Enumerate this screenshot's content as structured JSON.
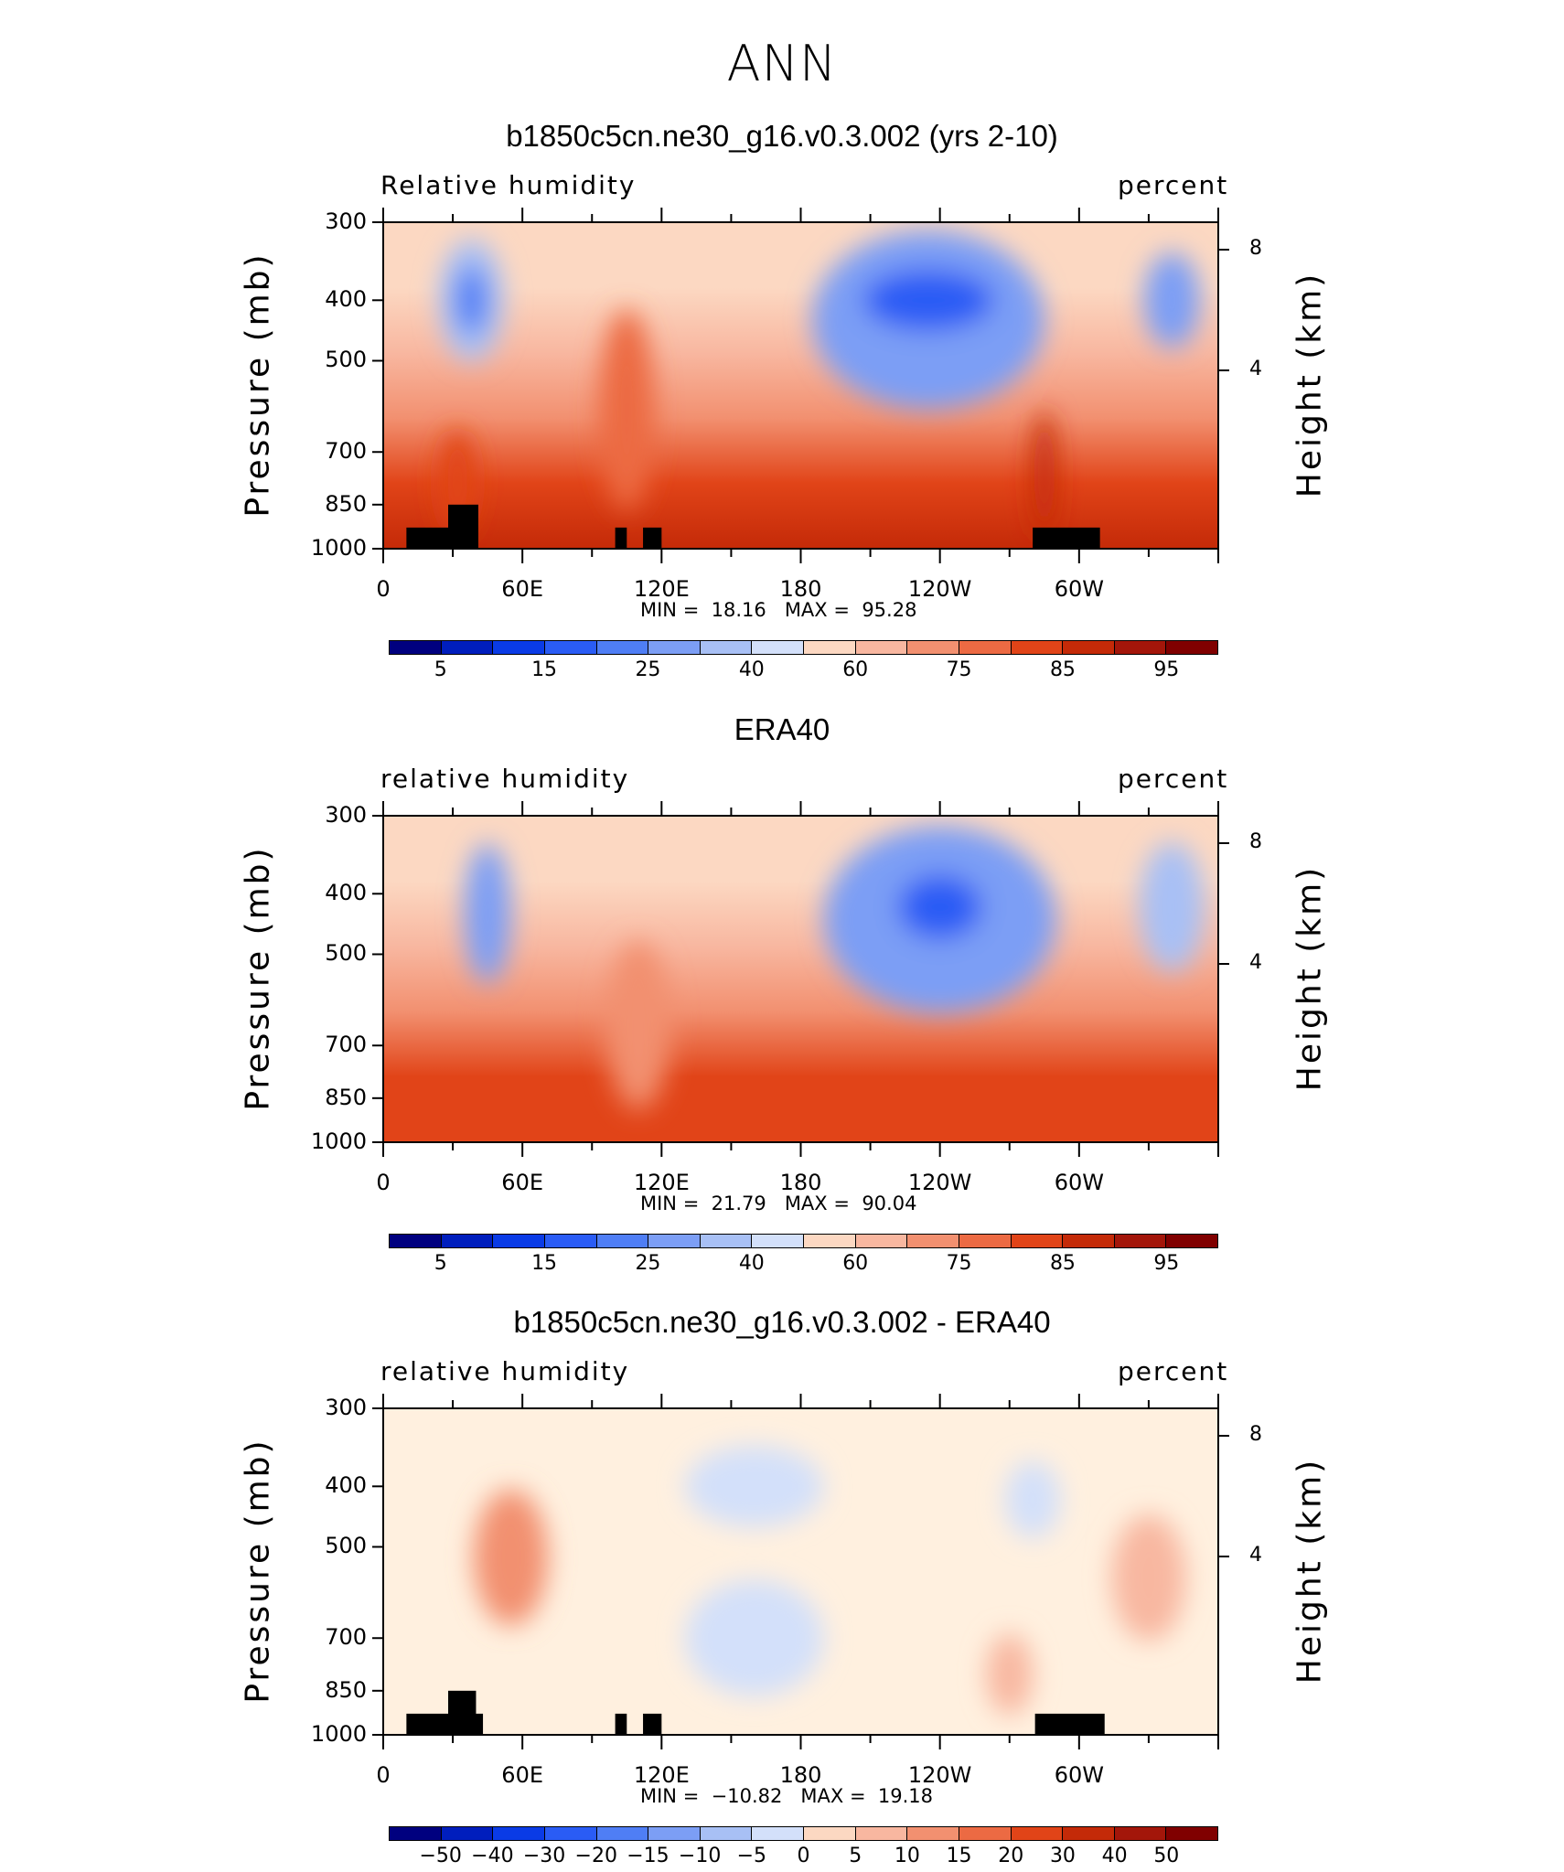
{
  "super_title": "ANN",
  "colors": {
    "rh": [
      "#00007f",
      "#001ebd",
      "#0a3be6",
      "#2a5cf5",
      "#4f7ef5",
      "#7c9ef5",
      "#a8c0f5",
      "#d3e0fa",
      "#fff0df",
      "#fcd8c2",
      "#f8b7a0",
      "#f29070",
      "#ec6a43",
      "#e14418",
      "#c42a08",
      "#a3160a",
      "#800000"
    ],
    "diff": [
      "#00007f",
      "#001ebd",
      "#0a3be6",
      "#2a5cf5",
      "#4f7ef5",
      "#7c9ef5",
      "#a8c0f5",
      "#d3e0fa",
      "#fff0df",
      "#fcd8c2",
      "#f8b7a0",
      "#f29070",
      "#ec6a43",
      "#e14418",
      "#c42a08",
      "#a3160a",
      "#800000"
    ]
  },
  "chart_data": [
    {
      "type": "heatmap",
      "title": "b1850c5cn.ne30_g16.v0.3.002 (yrs 2-10)",
      "left_label": "Relative humidity",
      "right_label": "percent",
      "ylabel": "Pressure (mb)",
      "y2label": "Height (km)",
      "yticks": [
        "300",
        "400",
        "500",
        "700",
        "850",
        "1000"
      ],
      "y2ticks": [
        "8",
        "4"
      ],
      "xticks": [
        "0",
        "60E",
        "120E",
        "180",
        "120W",
        "60W"
      ],
      "min_label": "MIN =",
      "min": "18.16",
      "max_label": "MAX =",
      "max": "95.28",
      "colorbar_labels": [
        "5",
        "15",
        "25",
        "40",
        "60",
        "75",
        "85",
        "95"
      ],
      "blobs": [
        {
          "lon": 38,
          "p": 400,
          "v": 38,
          "rx": 14,
          "ry": 90
        },
        {
          "lon": 38,
          "p": 400,
          "v": 28,
          "rx": 7,
          "ry": 50
        },
        {
          "lon": 235,
          "p": 430,
          "v": 30,
          "rx": 50,
          "ry": 140
        },
        {
          "lon": 235,
          "p": 400,
          "v": 18,
          "rx": 28,
          "ry": 45
        },
        {
          "lon": 340,
          "p": 400,
          "v": 32,
          "rx": 12,
          "ry": 70
        },
        {
          "lon": 105,
          "p": 600,
          "v": 72,
          "rx": 12,
          "ry": 220
        },
        {
          "lon": 32,
          "p": 780,
          "v": 82,
          "rx": 8,
          "ry": 150
        },
        {
          "lon": 285,
          "p": 760,
          "v": 88,
          "rx": 5,
          "ry": 180
        }
      ],
      "base_low": 86,
      "masks": [
        {
          "lon0": 10,
          "lon1": 41,
          "p": 925
        },
        {
          "lon0": 28,
          "lon1": 41,
          "p": 850
        },
        {
          "lon0": 100,
          "lon1": 105,
          "p": 925
        },
        {
          "lon0": 112,
          "lon1": 120,
          "p": 925
        },
        {
          "lon0": 280,
          "lon1": 309,
          "p": 925
        }
      ],
      "palette": "rh",
      "range": [
        0,
        100
      ]
    },
    {
      "type": "heatmap",
      "title": "ERA40",
      "left_label": "relative humidity",
      "right_label": "percent",
      "ylabel": "Pressure (mb)",
      "y2label": "Height (km)",
      "yticks": [
        "300",
        "400",
        "500",
        "700",
        "850",
        "1000"
      ],
      "y2ticks": [
        "8",
        "4"
      ],
      "xticks": [
        "0",
        "60E",
        "120E",
        "180",
        "120W",
        "60W"
      ],
      "min_label": "MIN =",
      "min": "21.79",
      "max_label": "MAX =",
      "max": "90.04",
      "colorbar_labels": [
        "5",
        "15",
        "25",
        "40",
        "60",
        "75",
        "85",
        "95"
      ],
      "blobs": [
        {
          "lon": 45,
          "p": 430,
          "v": 32,
          "rx": 10,
          "ry": 110
        },
        {
          "lon": 240,
          "p": 440,
          "v": 30,
          "rx": 50,
          "ry": 150
        },
        {
          "lon": 240,
          "p": 420,
          "v": 22,
          "rx": 18,
          "ry": 50
        },
        {
          "lon": 340,
          "p": 420,
          "v": 38,
          "rx": 14,
          "ry": 100
        },
        {
          "lon": 110,
          "p": 650,
          "v": 68,
          "rx": 14,
          "ry": 200
        }
      ],
      "base_low": 82,
      "masks": [],
      "palette": "rh",
      "range": [
        0,
        100
      ]
    },
    {
      "type": "heatmap",
      "title": "b1850c5cn.ne30_g16.v0.3.002 - ERA40",
      "left_label": "relative humidity",
      "right_label": "percent",
      "ylabel": "Pressure (mb)",
      "y2label": "Height (km)",
      "yticks": [
        "300",
        "400",
        "500",
        "700",
        "850",
        "1000"
      ],
      "y2ticks": [
        "8",
        "4"
      ],
      "xticks": [
        "0",
        "60E",
        "120E",
        "180",
        "120W",
        "60W"
      ],
      "min_label": "MIN =",
      "min": "−10.82",
      "max_label": "MAX =",
      "max": "19.18",
      "colorbar_labels": [
        "−50",
        "−40",
        "−30",
        "−20",
        "−15",
        "−10",
        "−5",
        "0",
        "5",
        "10",
        "15",
        "20",
        "30",
        "40",
        "50"
      ],
      "blobs": [
        {
          "lon": 55,
          "p": 520,
          "v": 18,
          "rx": 16,
          "ry": 130
        },
        {
          "lon": 330,
          "p": 560,
          "v": 12,
          "rx": 16,
          "ry": 130
        },
        {
          "lon": 160,
          "p": 400,
          "v": -7,
          "rx": 30,
          "ry": 60
        },
        {
          "lon": 160,
          "p": 700,
          "v": -8,
          "rx": 30,
          "ry": 150
        },
        {
          "lon": 280,
          "p": 420,
          "v": -6,
          "rx": 12,
          "ry": 60
        },
        {
          "lon": 270,
          "p": 800,
          "v": 9,
          "rx": 10,
          "ry": 120
        }
      ],
      "base_low": 2,
      "masks": [
        {
          "lon0": 10,
          "lon1": 43,
          "p": 925
        },
        {
          "lon0": 28,
          "lon1": 40,
          "p": 850
        },
        {
          "lon0": 100,
          "lon1": 105,
          "p": 925
        },
        {
          "lon0": 112,
          "lon1": 120,
          "p": 925
        },
        {
          "lon0": 281,
          "lon1": 311,
          "p": 925
        }
      ],
      "palette": "diff",
      "range": [
        -50,
        50
      ]
    }
  ]
}
